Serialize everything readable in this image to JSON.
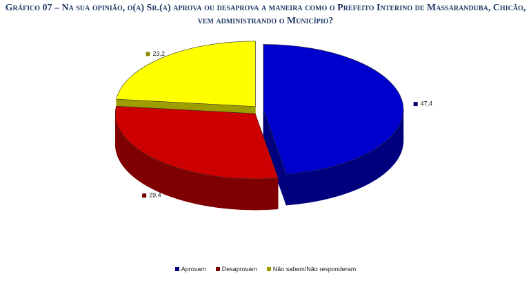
{
  "chart_data": {
    "type": "pie3d",
    "title": "Gráfico 07 – Na sua opinião, o(a) Sr.(a) aprova ou desaprova a maneira como o Prefeito Interino de Massaranduba, Chicão, vem administrando o Município?",
    "categories": [
      "Aprovam",
      "Desaprovam",
      "Não sabem/Não responderam"
    ],
    "values": [
      47.4,
      29.4,
      23.2
    ],
    "value_labels": [
      "47,4",
      "29,4",
      "23,2"
    ],
    "colors": [
      "#0000cc",
      "#cc0000",
      "#ffff00"
    ],
    "legend": "bottom"
  }
}
